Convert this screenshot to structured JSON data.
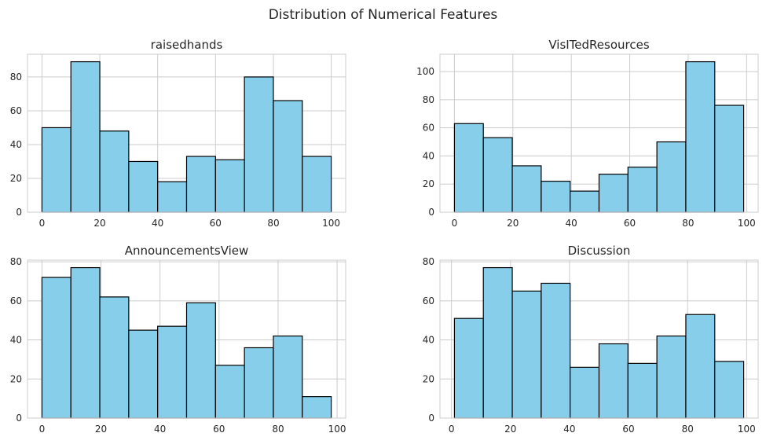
{
  "figure": {
    "title": "Distribution of Numerical Features"
  },
  "style": {
    "bar_color": "#87ceeb",
    "edge_color": "#000000",
    "grid_color": "#cccccc",
    "text_color": "#262626"
  },
  "chart_data": [
    {
      "type": "bar",
      "title": "raisedhands",
      "xlabel": "",
      "ylabel": "",
      "bin_edges": [
        0,
        10,
        20,
        30,
        40,
        50,
        60,
        70,
        80,
        90,
        100
      ],
      "values": [
        50,
        89,
        48,
        30,
        18,
        33,
        31,
        80,
        66,
        33
      ],
      "xlim": [
        -5,
        105
      ],
      "ylim": [
        0,
        93.45
      ],
      "xticks": [
        0,
        20,
        40,
        60,
        80,
        100
      ],
      "yticks": [
        0,
        20,
        40,
        60,
        80
      ],
      "grid": true
    },
    {
      "type": "bar",
      "title": "VisITedResources",
      "xlabel": "",
      "ylabel": "",
      "bin_edges": [
        0,
        9.9,
        19.8,
        29.7,
        39.6,
        49.5,
        59.4,
        69.3,
        79.2,
        89.1,
        99
      ],
      "values": [
        63,
        53,
        33,
        22,
        15,
        27,
        32,
        50,
        107,
        76
      ],
      "xlim": [
        -4.95,
        103.95
      ],
      "ylim": [
        0,
        112.35
      ],
      "xticks": [
        0,
        20,
        40,
        60,
        80,
        100
      ],
      "yticks": [
        0,
        20,
        40,
        60,
        80,
        100
      ],
      "grid": true
    },
    {
      "type": "bar",
      "title": "AnnouncementsView",
      "xlabel": "",
      "ylabel": "",
      "bin_edges": [
        0,
        9.8,
        19.6,
        29.4,
        39.2,
        49,
        58.8,
        68.6,
        78.4,
        88.2,
        98
      ],
      "values": [
        72,
        77,
        62,
        45,
        47,
        59,
        27,
        36,
        42,
        11
      ],
      "xlim": [
        -4.9,
        102.9
      ],
      "ylim": [
        0,
        80.85
      ],
      "xticks": [
        0,
        20,
        40,
        60,
        80,
        100
      ],
      "yticks": [
        0,
        20,
        40,
        60,
        80
      ],
      "grid": true
    },
    {
      "type": "bar",
      "title": "Discussion",
      "xlabel": "",
      "ylabel": "",
      "bin_edges": [
        1,
        10.8,
        20.6,
        30.4,
        40.2,
        50,
        59.8,
        69.6,
        79.4,
        89.2,
        99
      ],
      "values": [
        51,
        77,
        65,
        69,
        26,
        38,
        28,
        42,
        53,
        29
      ],
      "xlim": [
        -3.9,
        103.9
      ],
      "ylim": [
        0,
        80.85
      ],
      "xticks": [
        0,
        20,
        40,
        60,
        80,
        100
      ],
      "yticks": [
        0,
        20,
        40,
        60,
        80
      ],
      "grid": true
    }
  ]
}
